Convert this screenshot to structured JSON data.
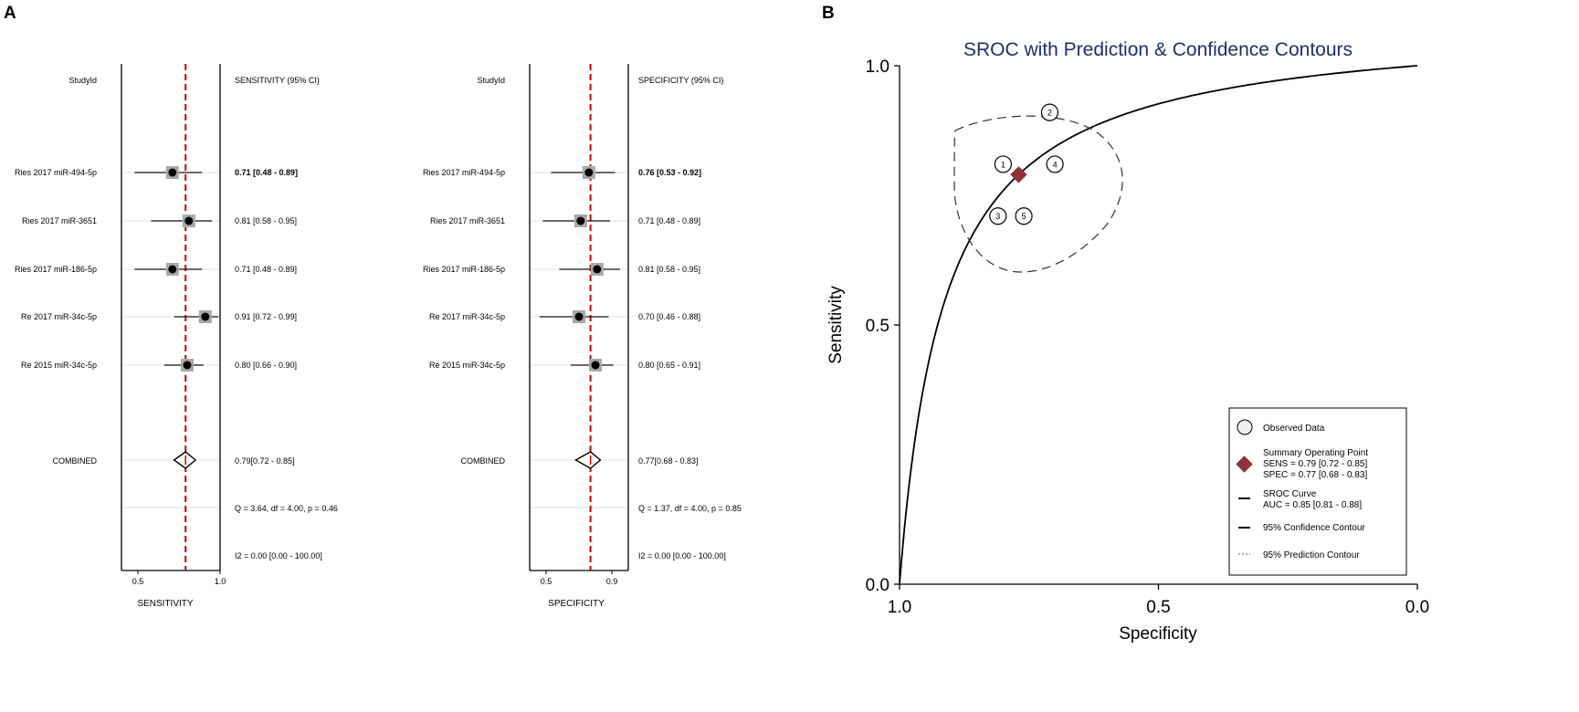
{
  "panels": {
    "a": "A",
    "b": "B"
  },
  "forest_sens": {
    "header_study": "StudyId",
    "header_ci": "SENSITIVITY (95% CI)",
    "xlabel": "SENSITIVITY",
    "ticks": [
      "0.5",
      "1.0"
    ],
    "combined_label": "COMBINED",
    "combined_text": "0.79[0.72 - 0.85]",
    "q_text": "Q =  3.64, df = 4.00, p =  0.46",
    "i2_text": "I2 = 0.00 [0.00 - 100.00]"
  },
  "forest_spec": {
    "header_study": "StudyId",
    "header_ci": "SPECIFICITY (95% CI)",
    "xlabel": "SPECIFICITY",
    "ticks": [
      "0.5",
      "0.9"
    ],
    "combined_label": "COMBINED",
    "combined_text": "0.77[0.68 - 0.83]",
    "q_text": "Q =  1.37, df = 4.00, p =  0.85",
    "i2_text": "I2 = 0.00 [0.00 - 100.00]"
  },
  "sroc": {
    "title": "SROC with Prediction & Confidence Contours",
    "xlabel": "Specificity",
    "ylabel": "Sensitivity",
    "xticks": [
      "1.0",
      "0.5",
      "0.0"
    ],
    "yticks": [
      "1.0",
      "0.5",
      "0.0"
    ],
    "legend": {
      "observed": "Observed Data",
      "summary_title": "Summary Operating Point",
      "sens": "SENS = 0.79 [0.72 - 0.85]",
      "spec": "SPEC = 0.77 [0.68 - 0.83]",
      "curve_title": "SROC Curve",
      "auc": "AUC = 0.85 [0.81 - 0.88]",
      "conf": "95% Confidence Contour",
      "pred": "95% Prediction Contour"
    }
  },
  "chart_data": [
    {
      "type": "forest",
      "name": "sensitivity",
      "xlim": [
        0.4,
        1.0
      ],
      "pooled": 0.79,
      "studies": [
        {
          "label": "Ries 2017 miR-494-5p",
          "est": 0.71,
          "lo": 0.48,
          "hi": 0.89,
          "text": "0.71 [0.48 - 0.89]",
          "bold": true
        },
        {
          "label": "Ries 2017 miR-3651",
          "est": 0.81,
          "lo": 0.58,
          "hi": 0.95,
          "text": "0.81 [0.58 - 0.95]",
          "bold": false
        },
        {
          "label": "Ries 2017 miR-186-5p",
          "est": 0.71,
          "lo": 0.48,
          "hi": 0.89,
          "text": "0.71 [0.48 - 0.89]",
          "bold": false
        },
        {
          "label": "Re 2017 miR-34c-5p",
          "est": 0.91,
          "lo": 0.72,
          "hi": 0.99,
          "text": "0.91 [0.72 - 0.99]",
          "bold": false
        },
        {
          "label": "Re 2015 miR-34c-5p",
          "est": 0.8,
          "lo": 0.66,
          "hi": 0.9,
          "text": "0.80 [0.66 - 0.90]",
          "bold": false
        }
      ],
      "combined": {
        "est": 0.79,
        "lo": 0.72,
        "hi": 0.85
      }
    },
    {
      "type": "forest",
      "name": "specificity",
      "xlim": [
        0.4,
        1.0
      ],
      "pooled": 0.77,
      "studies": [
        {
          "label": "Ries 2017 miR-494-5p",
          "est": 0.76,
          "lo": 0.53,
          "hi": 0.92,
          "text": "0.76 [0.53 - 0.92]",
          "bold": true
        },
        {
          "label": "Ries 2017 miR-3651",
          "est": 0.71,
          "lo": 0.48,
          "hi": 0.89,
          "text": "0.71 [0.48 - 0.89]",
          "bold": false
        },
        {
          "label": "Ries 2017 miR-186-5p",
          "est": 0.81,
          "lo": 0.58,
          "hi": 0.95,
          "text": "0.81 [0.58 - 0.95]",
          "bold": false
        },
        {
          "label": "Re 2017 miR-34c-5p",
          "est": 0.7,
          "lo": 0.46,
          "hi": 0.88,
          "text": "0.70 [0.46 - 0.88]",
          "bold": false
        },
        {
          "label": "Re 2015 miR-34c-5p",
          "est": 0.8,
          "lo": 0.65,
          "hi": 0.91,
          "text": "0.80 [0.65 - 0.91]",
          "bold": false
        }
      ],
      "combined": {
        "est": 0.77,
        "lo": 0.68,
        "hi": 0.83
      }
    },
    {
      "type": "sroc",
      "name": "SROC",
      "xlim": [
        1.0,
        0.0
      ],
      "ylim": [
        0.0,
        1.0
      ],
      "observed": [
        {
          "id": "1",
          "spec": 0.8,
          "sens": 0.81
        },
        {
          "id": "2",
          "spec": 0.71,
          "sens": 0.91
        },
        {
          "id": "3",
          "spec": 0.81,
          "sens": 0.71
        },
        {
          "id": "4",
          "spec": 0.7,
          "sens": 0.81
        },
        {
          "id": "5",
          "spec": 0.76,
          "sens": 0.71
        }
      ],
      "summary": {
        "spec": 0.77,
        "sens": 0.79
      },
      "auc": 0.85
    }
  ]
}
